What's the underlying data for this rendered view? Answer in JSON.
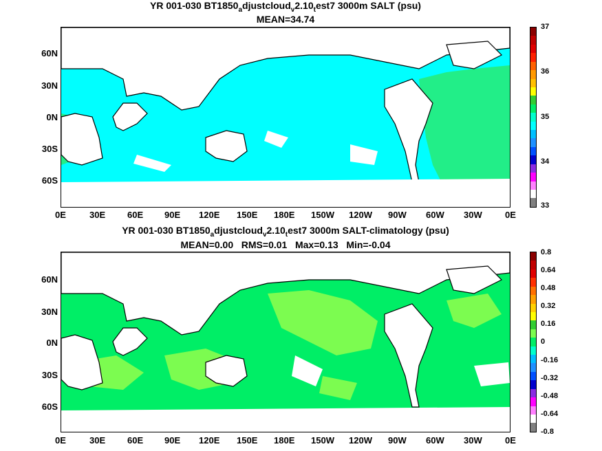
{
  "top_panel": {
    "title_parts": [
      "YR 001-030 BT1850",
      "a",
      "djustcloud",
      "v",
      "2.10",
      "t",
      "est7 3000m SALT (psu)"
    ],
    "subtitle": "MEAN=34.74",
    "colorbar_ticks": [
      "37",
      "36",
      "35",
      "34",
      "33"
    ],
    "colorbar_colors": [
      "#8b0000",
      "#c00000",
      "#e00000",
      "#ff2000",
      "#ff6000",
      "#ff9900",
      "#ffc000",
      "#ffff00",
      "#32cd32",
      "#00ee66",
      "#00ffcc",
      "#00ffff",
      "#00bfff",
      "#1e90ff",
      "#0050ff",
      "#0000cd",
      "#8a2be2",
      "#ff00ff",
      "#ff80ff",
      "#ffffff",
      "#808080"
    ],
    "fill_colors": {
      "ocean": "#00ffff",
      "atlantic": "#22ee88",
      "land": "#ffffff",
      "coast": "#000000"
    }
  },
  "bottom_panel": {
    "title_parts": [
      "YR 001-030 BT1850",
      "a",
      "djustcloud",
      "v",
      "2.10",
      "t",
      "est7 3000m SALT-climatology (psu)"
    ],
    "subtitle": "MEAN=0.00   RMS=0.01   Max=0.13   Min=-0.04",
    "colorbar_ticks": [
      "0.8",
      "0.64",
      "0.48",
      "0.32",
      "0.16",
      "0",
      "-0.16",
      "-0.32",
      "-0.48",
      "-0.64",
      "-0.8"
    ],
    "colorbar_colors": [
      "#8b0000",
      "#c00000",
      "#e00000",
      "#ff3000",
      "#ff7000",
      "#ffa000",
      "#ffd000",
      "#ffff00",
      "#32cd32",
      "#7cfc50",
      "#00ee66",
      "#00ffcc",
      "#00bfff",
      "#1e90ff",
      "#0050ff",
      "#0000cd",
      "#8a2be2",
      "#ff00ff",
      "#ff80ff",
      "#ffffff",
      "#808080"
    ],
    "fill_colors": {
      "base": "#00ee66",
      "patch": "#7cfc50",
      "land": "#ffffff",
      "coast": "#000000"
    }
  },
  "x_ticks": [
    "0E",
    "30E",
    "60E",
    "90E",
    "120E",
    "150E",
    "180E",
    "150W",
    "120W",
    "90W",
    "60W",
    "30W",
    "0E"
  ],
  "y_ticks": [
    "60N",
    "30N",
    "0N",
    "30S",
    "60S"
  ]
}
